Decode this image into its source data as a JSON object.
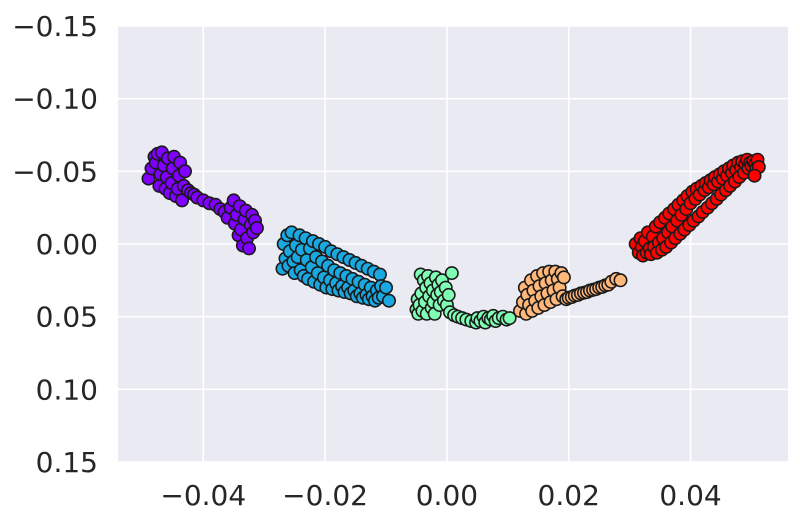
{
  "chart_data": {
    "type": "scatter",
    "title": "",
    "xlabel": "",
    "ylabel": "",
    "xlim": [
      -0.054,
      0.056
    ],
    "ylim": [
      -0.15,
      0.15
    ],
    "y_axis_inverted": true,
    "grid": true,
    "legend": "none",
    "background_color": "#eaeaf2",
    "xticks": [
      -0.04,
      -0.02,
      0.0,
      0.02,
      0.04
    ],
    "xtick_labels": [
      "−0.04",
      "−0.02",
      "0.00",
      "0.02",
      "0.04"
    ],
    "yticks": [
      -0.15,
      -0.1,
      -0.05,
      0.0,
      0.05,
      0.1,
      0.15
    ],
    "ytick_labels": [
      "−0.15",
      "−0.10",
      "−0.05",
      "0.00",
      "0.05",
      "0.10",
      "0.15"
    ],
    "series": [
      {
        "color": "#8000ff",
        "points": [
          [
            -0.049,
            -0.045
          ],
          [
            -0.0485,
            -0.052
          ],
          [
            -0.048,
            -0.06
          ],
          [
            -0.0478,
            -0.056
          ],
          [
            -0.0475,
            -0.062
          ],
          [
            -0.0472,
            -0.04
          ],
          [
            -0.047,
            -0.048
          ],
          [
            -0.0468,
            -0.063
          ],
          [
            -0.0465,
            -0.054
          ],
          [
            -0.0462,
            -0.038
          ],
          [
            -0.046,
            -0.046
          ],
          [
            -0.0458,
            -0.059
          ],
          [
            -0.0455,
            -0.035
          ],
          [
            -0.0452,
            -0.042
          ],
          [
            -0.045,
            -0.052
          ],
          [
            -0.0448,
            -0.06
          ],
          [
            -0.0445,
            -0.033
          ],
          [
            -0.0442,
            -0.038
          ],
          [
            -0.044,
            -0.047
          ],
          [
            -0.0438,
            -0.056
          ],
          [
            -0.0435,
            -0.03
          ],
          [
            -0.0432,
            -0.04
          ],
          [
            -0.043,
            -0.05
          ],
          [
            -0.0425,
            -0.037
          ],
          [
            -0.042,
            -0.035
          ],
          [
            -0.0415,
            -0.034
          ],
          [
            -0.041,
            -0.032
          ],
          [
            -0.04,
            -0.03
          ],
          [
            -0.039,
            -0.028
          ],
          [
            -0.038,
            -0.027
          ],
          [
            -0.0372,
            -0.024
          ],
          [
            -0.0365,
            -0.022
          ],
          [
            -0.036,
            -0.018
          ],
          [
            -0.0355,
            -0.025
          ],
          [
            -0.035,
            -0.03
          ],
          [
            -0.0348,
            -0.014
          ],
          [
            -0.0345,
            -0.02
          ],
          [
            -0.0342,
            -0.006
          ],
          [
            -0.034,
            -0.026
          ],
          [
            -0.0338,
            -0.01
          ],
          [
            -0.0335,
            0.001
          ],
          [
            -0.0332,
            -0.017
          ],
          [
            -0.033,
            -0.023
          ],
          [
            -0.0328,
            -0.004
          ],
          [
            -0.0325,
            0.003
          ],
          [
            -0.0322,
            -0.013
          ],
          [
            -0.032,
            -0.02
          ],
          [
            -0.0318,
            -0.008
          ],
          [
            -0.0315,
            -0.016
          ],
          [
            -0.0312,
            -0.011
          ]
        ]
      },
      {
        "color": "#1aa8e0",
        "points": [
          [
            -0.027,
            0.017
          ],
          [
            -0.0268,
            0.0
          ],
          [
            -0.0265,
            0.01
          ],
          [
            -0.0262,
            -0.006
          ],
          [
            -0.026,
            0.015
          ],
          [
            -0.0258,
            0.005
          ],
          [
            -0.0255,
            -0.008
          ],
          [
            -0.0252,
            0.012
          ],
          [
            -0.025,
            0.02
          ],
          [
            -0.0248,
            0.001
          ],
          [
            -0.0245,
            0.009
          ],
          [
            -0.0242,
            -0.006
          ],
          [
            -0.024,
            0.018
          ],
          [
            -0.0238,
            0.004
          ],
          [
            -0.0235,
            0.022
          ],
          [
            -0.0232,
            -0.004
          ],
          [
            -0.023,
            0.011
          ],
          [
            -0.0228,
            0.024
          ],
          [
            -0.0225,
            0.003
          ],
          [
            -0.0222,
            0.016
          ],
          [
            -0.022,
            -0.002
          ],
          [
            -0.0218,
            0.026
          ],
          [
            -0.0215,
            0.009
          ],
          [
            -0.0212,
            0.02
          ],
          [
            -0.021,
            0.0
          ],
          [
            -0.0208,
            0.028
          ],
          [
            -0.0205,
            0.012
          ],
          [
            -0.0202,
            0.023
          ],
          [
            -0.02,
            0.002
          ],
          [
            -0.0198,
            0.03
          ],
          [
            -0.0195,
            0.015
          ],
          [
            -0.0192,
            0.025
          ],
          [
            -0.019,
            0.005
          ],
          [
            -0.0188,
            0.031
          ],
          [
            -0.0185,
            0.018
          ],
          [
            -0.0182,
            0.027
          ],
          [
            -0.018,
            0.007
          ],
          [
            -0.0178,
            0.032
          ],
          [
            -0.0175,
            0.02
          ],
          [
            -0.0172,
            0.029
          ],
          [
            -0.017,
            0.009
          ],
          [
            -0.0168,
            0.033
          ],
          [
            -0.0165,
            0.022
          ],
          [
            -0.0162,
            0.03
          ],
          [
            -0.016,
            0.011
          ],
          [
            -0.0158,
            0.034
          ],
          [
            -0.0155,
            0.024
          ],
          [
            -0.0152,
            0.032
          ],
          [
            -0.015,
            0.013
          ],
          [
            -0.0148,
            0.036
          ],
          [
            -0.0145,
            0.026
          ],
          [
            -0.0142,
            0.034
          ],
          [
            -0.014,
            0.015
          ],
          [
            -0.0138,
            0.037
          ],
          [
            -0.0135,
            0.028
          ],
          [
            -0.0132,
            0.035
          ],
          [
            -0.013,
            0.017
          ],
          [
            -0.0128,
            0.038
          ],
          [
            -0.0125,
            0.03
          ],
          [
            -0.0122,
            0.036
          ],
          [
            -0.012,
            0.019
          ],
          [
            -0.0118,
            0.039
          ],
          [
            -0.0115,
            0.032
          ],
          [
            -0.0112,
            0.037
          ],
          [
            -0.011,
            0.021
          ],
          [
            -0.0108,
            0.029
          ],
          [
            -0.0105,
            0.036
          ],
          [
            -0.01,
            0.03
          ],
          [
            -0.0095,
            0.039
          ]
        ]
      },
      {
        "color": "#80ffb4",
        "points": [
          [
            -0.005,
            0.045
          ],
          [
            -0.0048,
            0.038
          ],
          [
            -0.0047,
            0.048
          ],
          [
            -0.0045,
            0.042
          ],
          [
            -0.0043,
            0.021
          ],
          [
            -0.0042,
            0.034
          ],
          [
            -0.004,
            0.046
          ],
          [
            -0.0038,
            0.025
          ],
          [
            -0.0036,
            0.04
          ],
          [
            -0.0034,
            0.03
          ],
          [
            -0.0033,
            0.048
          ],
          [
            -0.0031,
            0.022
          ],
          [
            -0.0029,
            0.036
          ],
          [
            -0.0027,
            0.027
          ],
          [
            -0.0025,
            0.044
          ],
          [
            -0.0023,
            0.032
          ],
          [
            -0.0022,
            0.04
          ],
          [
            -0.002,
            0.048
          ],
          [
            -0.0018,
            0.023
          ],
          [
            -0.0016,
            0.035
          ],
          [
            -0.0014,
            0.028
          ],
          [
            -0.0012,
            0.042
          ],
          [
            -0.001,
            0.033
          ],
          [
            -0.0008,
            0.025
          ],
          [
            -0.0005,
            0.039
          ],
          [
            -0.0002,
            0.03
          ],
          [
            0.0,
            0.042
          ],
          [
            0.0003,
            0.035
          ],
          [
            0.0005,
            0.047
          ],
          [
            0.0008,
            0.02
          ],
          [
            0.0012,
            0.049
          ],
          [
            0.0018,
            0.05
          ],
          [
            0.0025,
            0.051
          ],
          [
            0.0032,
            0.052
          ],
          [
            0.004,
            0.053
          ],
          [
            0.0048,
            0.054
          ],
          [
            0.005,
            0.051
          ],
          [
            0.0055,
            0.053
          ],
          [
            0.006,
            0.05
          ],
          [
            0.0063,
            0.054
          ],
          [
            0.0068,
            0.051
          ],
          [
            0.0072,
            0.052
          ],
          [
            0.0076,
            0.0495
          ],
          [
            0.008,
            0.053
          ],
          [
            0.0085,
            0.051
          ],
          [
            0.0092,
            0.05
          ],
          [
            0.0098,
            0.052
          ],
          [
            0.0103,
            0.051
          ]
        ]
      },
      {
        "color": "#ffb77a",
        "points": [
          [
            0.012,
            0.046
          ],
          [
            0.0125,
            0.04
          ],
          [
            0.0128,
            0.03
          ],
          [
            0.013,
            0.048
          ],
          [
            0.0132,
            0.035
          ],
          [
            0.0135,
            0.042
          ],
          [
            0.0138,
            0.025
          ],
          [
            0.014,
            0.046
          ],
          [
            0.0142,
            0.032
          ],
          [
            0.0145,
            0.039
          ],
          [
            0.0148,
            0.022
          ],
          [
            0.015,
            0.044
          ],
          [
            0.0152,
            0.029
          ],
          [
            0.0155,
            0.036
          ],
          [
            0.0158,
            0.02
          ],
          [
            0.016,
            0.042
          ],
          [
            0.0162,
            0.027
          ],
          [
            0.0165,
            0.034
          ],
          [
            0.0168,
            0.019
          ],
          [
            0.017,
            0.04
          ],
          [
            0.0172,
            0.025
          ],
          [
            0.0175,
            0.032
          ],
          [
            0.0178,
            0.019
          ],
          [
            0.018,
            0.038
          ],
          [
            0.0182,
            0.024
          ],
          [
            0.0185,
            0.03
          ],
          [
            0.0188,
            0.02
          ],
          [
            0.019,
            0.036
          ],
          [
            0.0192,
            0.023
          ],
          [
            0.0196,
            0.038
          ],
          [
            0.02,
            0.037
          ],
          [
            0.0205,
            0.0365
          ],
          [
            0.021,
            0.0355
          ],
          [
            0.0215,
            0.035
          ],
          [
            0.022,
            0.034
          ],
          [
            0.0225,
            0.0335
          ],
          [
            0.023,
            0.033
          ],
          [
            0.0235,
            0.032
          ],
          [
            0.024,
            0.0315
          ],
          [
            0.0245,
            0.031
          ],
          [
            0.025,
            0.03
          ],
          [
            0.0255,
            0.0295
          ],
          [
            0.026,
            0.0285
          ],
          [
            0.0265,
            0.028
          ],
          [
            0.027,
            0.026
          ],
          [
            0.0278,
            0.024
          ],
          [
            0.0285,
            0.025
          ]
        ]
      },
      {
        "color": "#ff0000",
        "points": [
          [
            0.031,
            0.0
          ],
          [
            0.0315,
            0.006
          ],
          [
            0.0318,
            -0.004
          ],
          [
            0.032,
            0.002
          ],
          [
            0.0322,
            0.008
          ],
          [
            0.0325,
            -0.002
          ],
          [
            0.0328,
            0.006
          ],
          [
            0.033,
            -0.008
          ],
          [
            0.0333,
            0.003
          ],
          [
            0.0335,
            0.007
          ],
          [
            0.0338,
            -0.005
          ],
          [
            0.034,
            0.002
          ],
          [
            0.0343,
            -0.012
          ],
          [
            0.0345,
            0.006
          ],
          [
            0.0348,
            -0.001
          ],
          [
            0.035,
            -0.015
          ],
          [
            0.0353,
            0.004
          ],
          [
            0.0355,
            -0.004
          ],
          [
            0.0358,
            -0.018
          ],
          [
            0.036,
            0.002
          ],
          [
            0.0363,
            -0.008
          ],
          [
            0.0365,
            -0.021
          ],
          [
            0.0368,
            -0.001
          ],
          [
            0.037,
            -0.012
          ],
          [
            0.0373,
            -0.024
          ],
          [
            0.0375,
            -0.004
          ],
          [
            0.0378,
            -0.016
          ],
          [
            0.038,
            -0.027
          ],
          [
            0.0383,
            -0.007
          ],
          [
            0.0385,
            -0.02
          ],
          [
            0.0388,
            -0.03
          ],
          [
            0.039,
            -0.01
          ],
          [
            0.0393,
            -0.024
          ],
          [
            0.0395,
            -0.033
          ],
          [
            0.0398,
            -0.013
          ],
          [
            0.04,
            -0.028
          ],
          [
            0.0403,
            -0.036
          ],
          [
            0.0405,
            -0.016
          ],
          [
            0.0408,
            -0.031
          ],
          [
            0.041,
            -0.038
          ],
          [
            0.0413,
            -0.019
          ],
          [
            0.0415,
            -0.034
          ],
          [
            0.0418,
            -0.04
          ],
          [
            0.042,
            -0.022
          ],
          [
            0.0423,
            -0.037
          ],
          [
            0.0425,
            -0.042
          ],
          [
            0.0428,
            -0.025
          ],
          [
            0.043,
            -0.039
          ],
          [
            0.0433,
            -0.044
          ],
          [
            0.0435,
            -0.028
          ],
          [
            0.0438,
            -0.041
          ],
          [
            0.044,
            -0.046
          ],
          [
            0.0443,
            -0.031
          ],
          [
            0.0445,
            -0.043
          ],
          [
            0.0448,
            -0.048
          ],
          [
            0.045,
            -0.034
          ],
          [
            0.0453,
            -0.045
          ],
          [
            0.0455,
            -0.05
          ],
          [
            0.0458,
            -0.037
          ],
          [
            0.046,
            -0.047
          ],
          [
            0.0463,
            -0.052
          ],
          [
            0.0465,
            -0.04
          ],
          [
            0.0468,
            -0.049
          ],
          [
            0.047,
            -0.054
          ],
          [
            0.0473,
            -0.043
          ],
          [
            0.0475,
            -0.051
          ],
          [
            0.0478,
            -0.056
          ],
          [
            0.048,
            -0.046
          ],
          [
            0.0483,
            -0.053
          ],
          [
            0.0485,
            -0.057
          ],
          [
            0.0488,
            -0.049
          ],
          [
            0.049,
            -0.055
          ],
          [
            0.0493,
            -0.058
          ],
          [
            0.0495,
            -0.052
          ],
          [
            0.0498,
            -0.056
          ],
          [
            0.05,
            -0.054
          ],
          [
            0.0503,
            -0.057
          ],
          [
            0.0506,
            -0.055
          ],
          [
            0.0508,
            -0.052
          ],
          [
            0.051,
            -0.058
          ],
          [
            0.0512,
            -0.053
          ],
          [
            0.0505,
            -0.047
          ]
        ]
      }
    ]
  }
}
